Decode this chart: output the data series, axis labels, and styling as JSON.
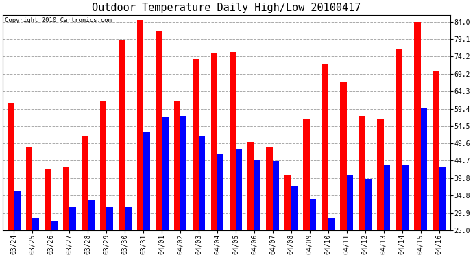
{
  "title": "Outdoor Temperature Daily High/Low 20100417",
  "copyright": "Copyright 2010 Cartronics.com",
  "dates": [
    "03/24",
    "03/25",
    "03/26",
    "03/27",
    "03/28",
    "03/29",
    "03/30",
    "03/31",
    "04/01",
    "04/02",
    "04/03",
    "04/04",
    "04/05",
    "04/06",
    "04/07",
    "04/08",
    "04/09",
    "04/10",
    "04/11",
    "04/12",
    "04/13",
    "04/14",
    "04/15",
    "04/16"
  ],
  "highs": [
    61.0,
    48.5,
    42.5,
    43.0,
    51.5,
    61.5,
    79.0,
    84.5,
    81.5,
    61.5,
    73.5,
    75.0,
    75.5,
    50.0,
    48.5,
    40.5,
    56.5,
    72.0,
    67.0,
    57.5,
    56.5,
    76.5,
    84.0,
    70.0
  ],
  "lows": [
    36.0,
    28.5,
    27.5,
    31.5,
    33.5,
    31.5,
    31.5,
    53.0,
    57.0,
    57.5,
    51.5,
    46.5,
    48.0,
    45.0,
    44.5,
    37.5,
    34.0,
    28.5,
    40.5,
    39.5,
    43.5,
    43.5,
    59.5,
    43.0
  ],
  "high_color": "#FF0000",
  "low_color": "#0000FF",
  "bg_color": "#FFFFFF",
  "plot_bg_color": "#FFFFFF",
  "grid_color": "#AAAAAA",
  "y_ticks": [
    25.0,
    29.9,
    34.8,
    39.8,
    44.7,
    49.6,
    54.5,
    59.4,
    64.3,
    69.2,
    74.2,
    79.1,
    84.0
  ],
  "ylim": [
    25.0,
    86.0
  ],
  "title_fontsize": 11,
  "copyright_fontsize": 6.5,
  "tick_fontsize": 7,
  "bar_width": 0.35
}
